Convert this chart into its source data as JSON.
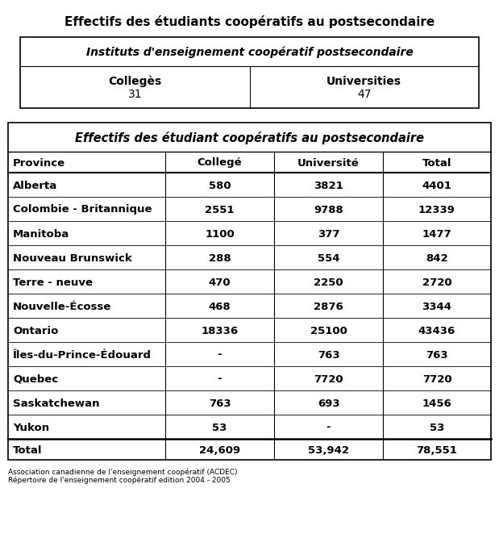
{
  "main_title": "Effectifs des étudiants coopératifs au postsecondaire",
  "top_table_subtitle": "Instituts d'enseignement coopératif postsecondaire",
  "col1_label": "Collegès",
  "col1_value": "31",
  "col2_label": "Universities",
  "col2_value": "47",
  "bottom_table_title": "Effectifs des étudiant coopératifs au postsecondaire",
  "headers": [
    "Province",
    "Collegé",
    "Université",
    "Total"
  ],
  "rows": [
    [
      "Alberta",
      "580",
      "3821",
      "4401"
    ],
    [
      "Colombie - Britannique",
      "2551",
      "9788",
      "12339"
    ],
    [
      "Manitoba",
      "1100",
      "377",
      "1477"
    ],
    [
      "Nouveau Brunswick",
      "288",
      "554",
      "842"
    ],
    [
      "Terre - neuve",
      "470",
      "2250",
      "2720"
    ],
    [
      "Nouvelle-Écosse",
      "468",
      "2876",
      "3344"
    ],
    [
      "Ontario",
      "18336",
      "25100",
      "43436"
    ],
    [
      "Îles-du-Prince-Édouard",
      "-",
      "763",
      "763"
    ],
    [
      "Quebec",
      "-",
      "7720",
      "7720"
    ],
    [
      "Saskatchewan",
      "763",
      "693",
      "1456"
    ],
    [
      "Yukon",
      "53",
      "-",
      "53"
    ]
  ],
  "total_row": [
    "Total",
    "24,609",
    "53,942",
    "78,551"
  ],
  "footnote1": "Association canadienne de l'enseignement coopératif (ACDEC)",
  "footnote2": "Répertoire de l'enseignement coopératif edition 2004 - 2005",
  "bg_color": "#ffffff",
  "border_color": "#000000",
  "text_color": "#000000",
  "figsize": [
    6.19,
    6.88
  ],
  "dpi": 100
}
